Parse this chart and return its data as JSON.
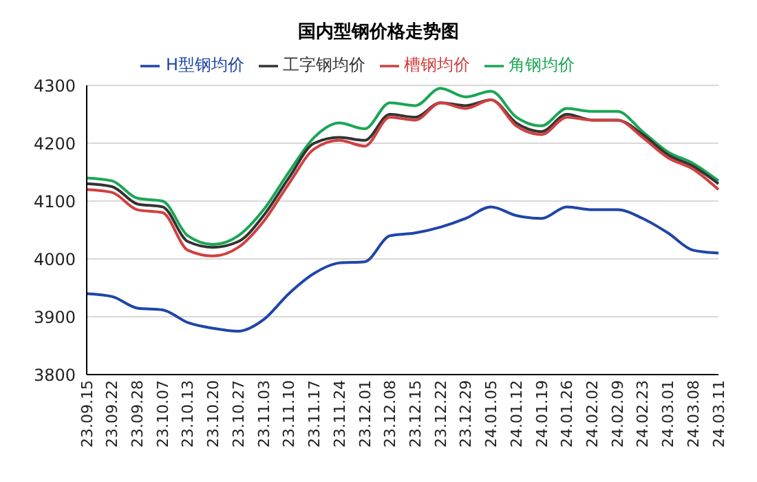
{
  "chart_data": {
    "type": "line",
    "title": "国内型钢价格走势图",
    "categories": [
      "23.09.15",
      "23.09.22",
      "23.09.28",
      "23.10.07",
      "23.10.13",
      "23.10.20",
      "23.10.27",
      "23.11.03",
      "23.11.10",
      "23.11.17",
      "23.11.24",
      "23.12.01",
      "23.12.08",
      "23.12.15",
      "23.12.22",
      "23.12.29",
      "24.01.05",
      "24.01.12",
      "24.01.19",
      "24.01.26",
      "24.02.02",
      "24.02.09",
      "24.02.23",
      "24.03.01",
      "24.03.08",
      "24.03.11"
    ],
    "series": [
      {
        "name": "角钢均价",
        "color": "#1aa655",
        "values": [
          4140,
          4135,
          4105,
          4100,
          4040,
          4025,
          4040,
          4085,
          4150,
          4210,
          4235,
          4225,
          4270,
          4265,
          4295,
          4280,
          4290,
          4245,
          4230,
          4260,
          4255,
          4255,
          4220,
          4185,
          4165,
          4135
        ]
      },
      {
        "name": "工字钢均价",
        "color": "#333333",
        "values": [
          4130,
          4125,
          4095,
          4090,
          4030,
          4020,
          4030,
          4075,
          4140,
          4200,
          4210,
          4205,
          4250,
          4245,
          4270,
          4265,
          4275,
          4235,
          4220,
          4250,
          4240,
          4240,
          4215,
          4180,
          4160,
          4130
        ]
      },
      {
        "name": "槽钢均价",
        "color": "#d04040",
        "values": [
          4120,
          4115,
          4085,
          4080,
          4015,
          4005,
          4020,
          4065,
          4130,
          4190,
          4205,
          4195,
          4245,
          4240,
          4270,
          4260,
          4275,
          4230,
          4215,
          4245,
          4240,
          4240,
          4210,
          4175,
          4155,
          4120
        ]
      },
      {
        "name": "H型钢均价",
        "color": "#1f45a8",
        "values": [
          3940,
          3935,
          3915,
          3912,
          3890,
          3880,
          3875,
          3895,
          3940,
          3975,
          3993,
          3995,
          4040,
          4045,
          4055,
          4070,
          4090,
          4075,
          4070,
          4090,
          4085,
          4085,
          4070,
          4045,
          4015,
          4010
        ]
      }
    ],
    "ylim": [
      3800,
      4300
    ],
    "yticks": [
      3800,
      3900,
      4000,
      4100,
      4200,
      4300
    ],
    "grid": "y",
    "legend": "top",
    "marker": "none",
    "line_style": "solid"
  }
}
